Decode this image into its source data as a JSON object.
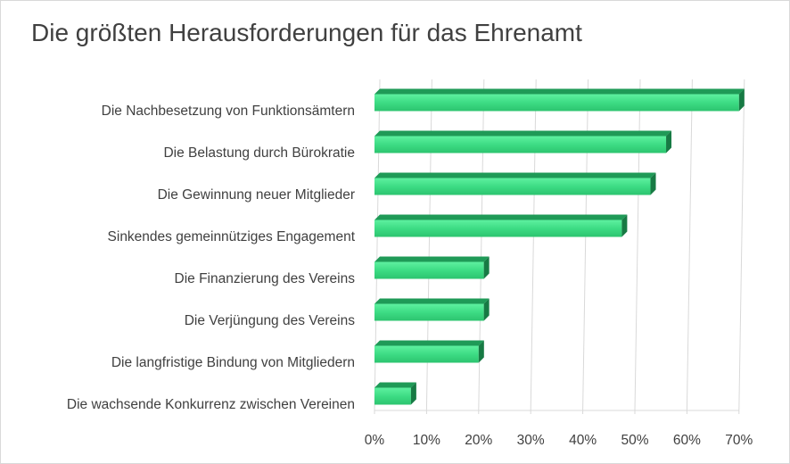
{
  "chart_data": {
    "type": "bar",
    "orientation": "horizontal",
    "title": "Die größten Herausforderungen für das Ehrenamt",
    "categories": [
      "Die Nachbesetzung von Funktionsämtern",
      "Die Belastung durch Bürokratie",
      "Die Gewinnung neuer Mitglieder",
      "Sinkendes gemeinnütziges Engagement",
      "Die Finanzierung des Vereins",
      "Die Verjüngung des Vereins",
      "Die langfristige Bindung von Mitgliedern",
      "Die wachsende Konkurrenz zwischen Vereinen"
    ],
    "values": [
      70,
      56,
      53,
      47.5,
      21,
      21,
      20,
      7
    ],
    "xlim": [
      0,
      70
    ],
    "x_ticks": [
      "0%",
      "10%",
      "20%",
      "30%",
      "40%",
      "50%",
      "60%",
      "70%"
    ],
    "grid": true,
    "bar_color": "#3ddc84",
    "bar_dark_color": "#1f9a57"
  }
}
